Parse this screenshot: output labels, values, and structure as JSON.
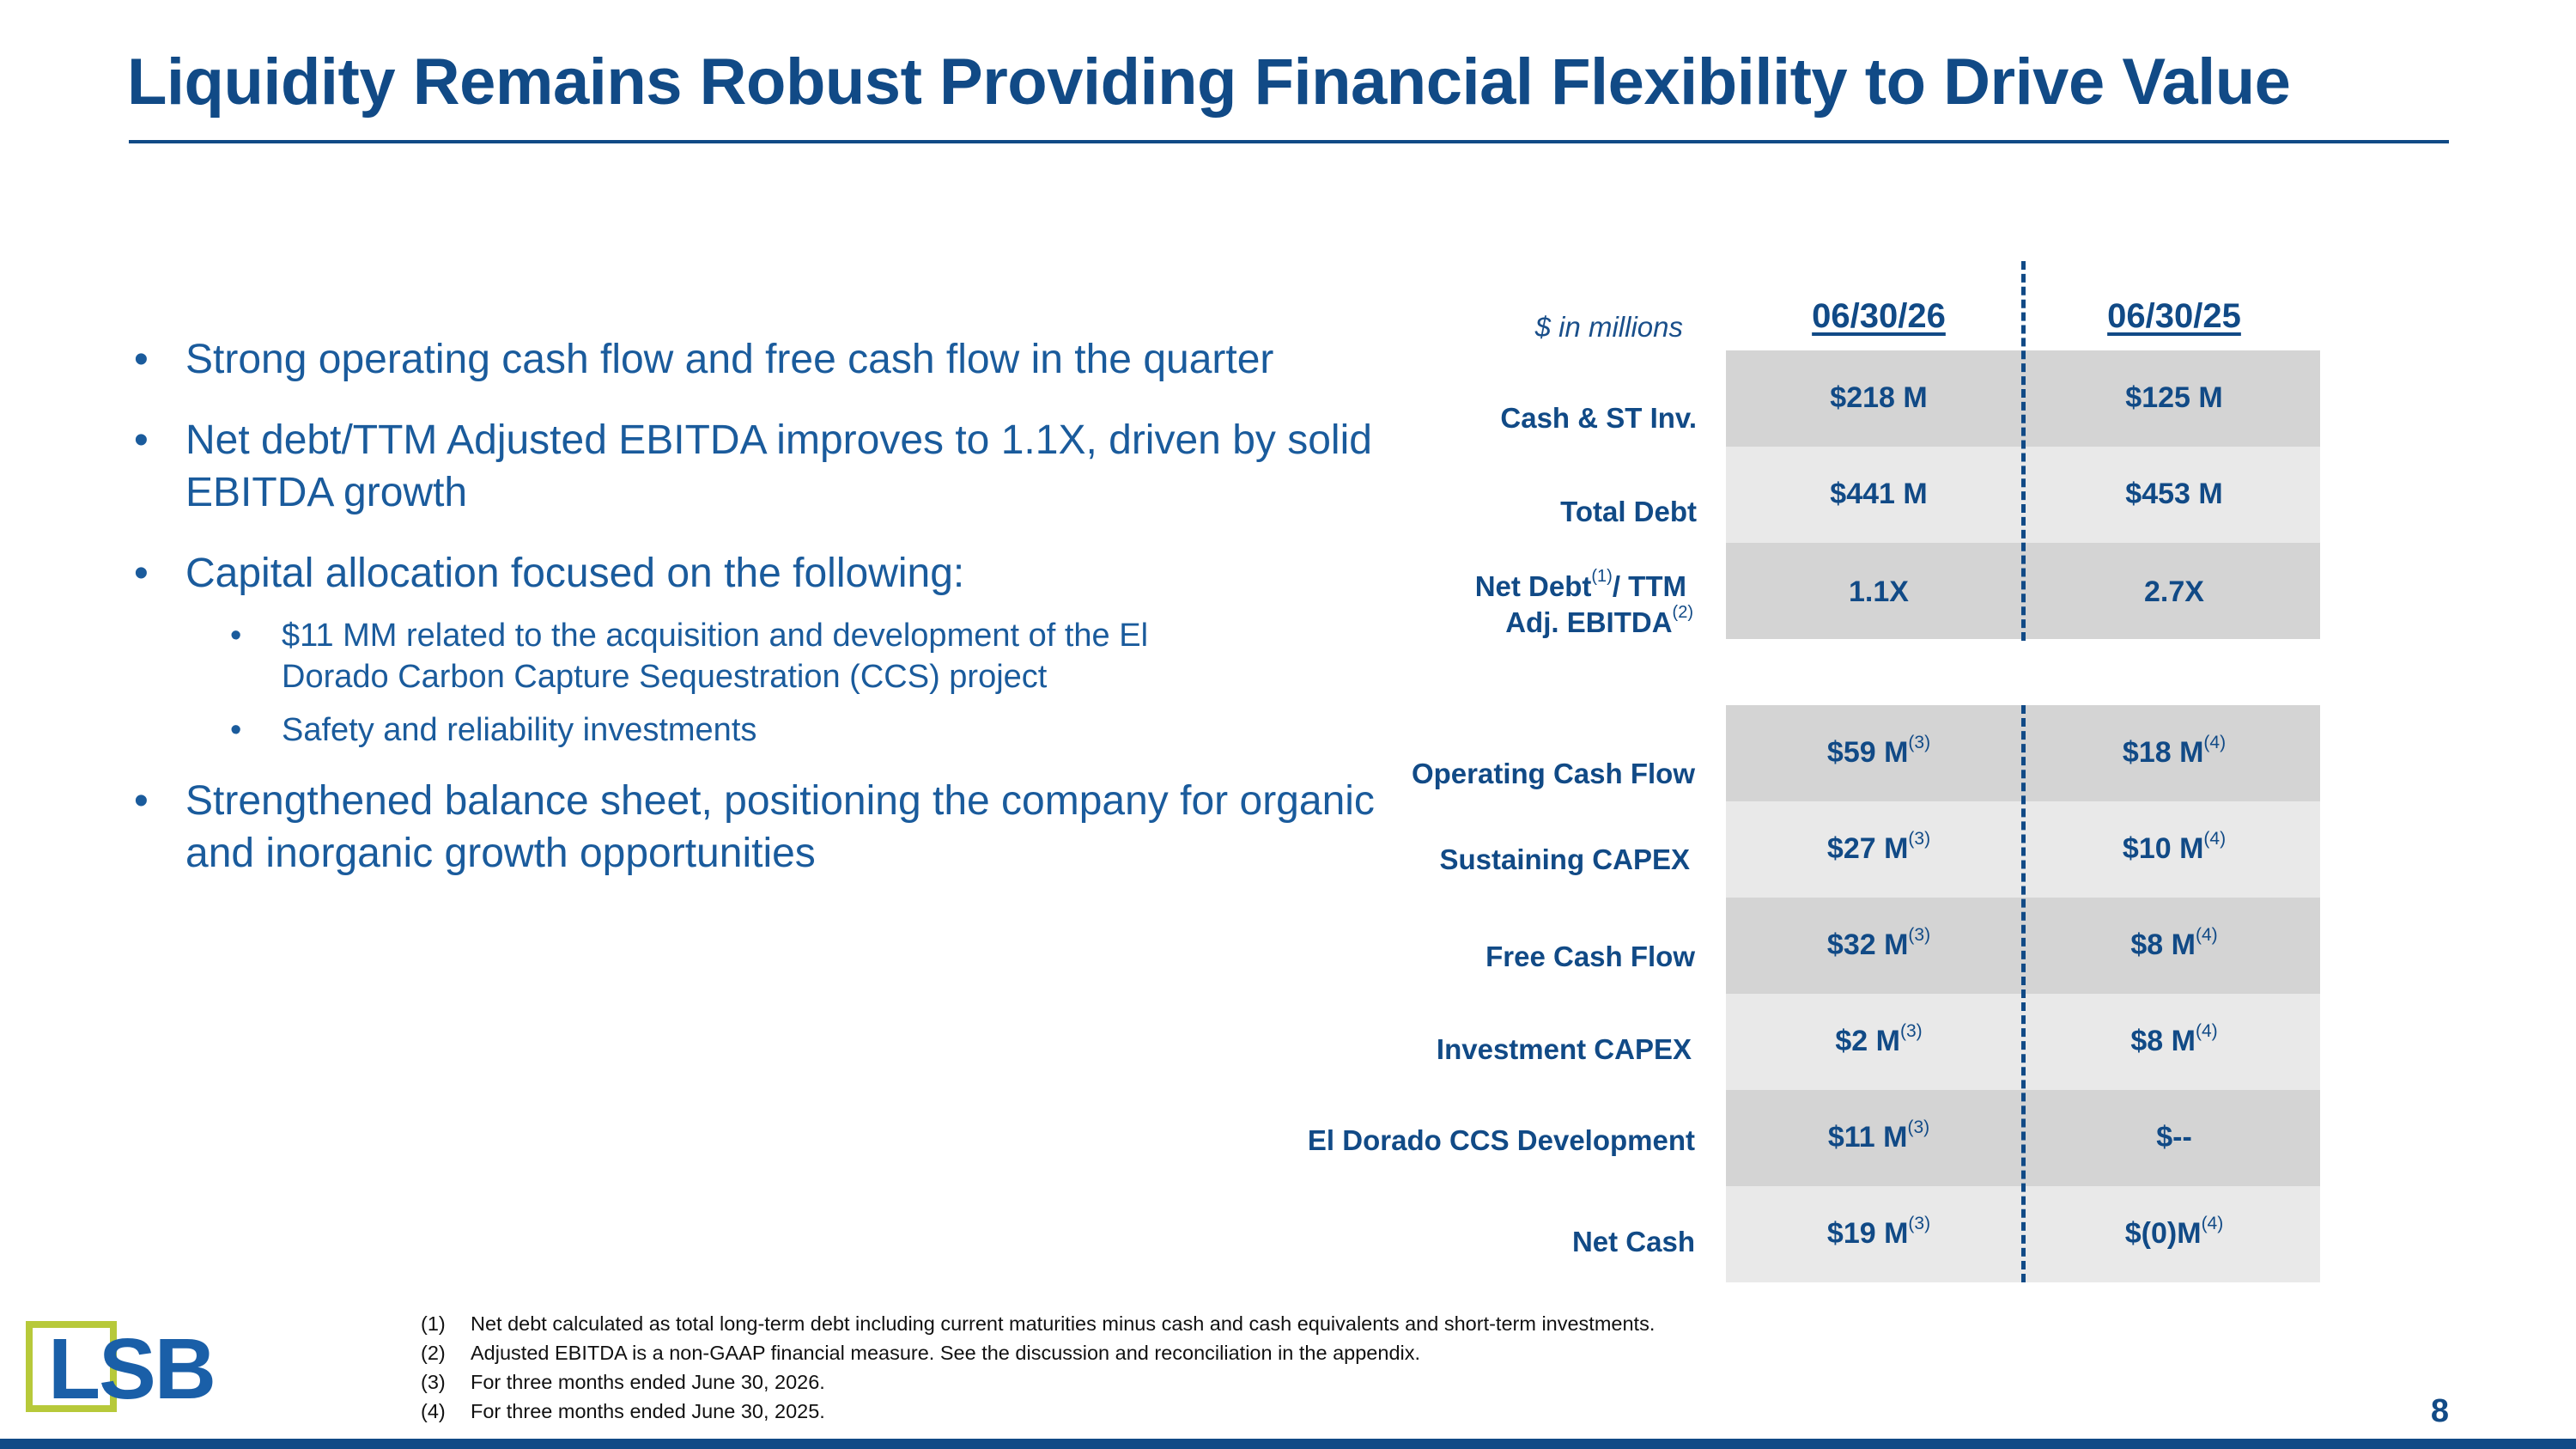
{
  "title": "Liquidity Remains Robust Providing Financial Flexibility to Drive Value",
  "bullets": {
    "b1": "Strong operating cash flow and free cash flow in the quarter",
    "b2": "Net debt/TTM Adjusted EBITDA improves to 1.1X, driven by solid EBITDA growth",
    "b3": "Capital allocation focused on the following:",
    "b3_sub1": "$11 MM related to the acquisition and development of the El Dorado Carbon Capture Sequestration (CCS) project",
    "b3_sub2": "Safety and reliability investments",
    "b4": "Strengthened balance sheet, positioning the company for organic and inorganic growth opportunities"
  },
  "table": {
    "units": "$ in millions",
    "col1": "06/30/26",
    "col2": "06/30/25",
    "rows": [
      {
        "label": "Cash & ST Inv.",
        "v1": "$218 M",
        "v1_note": "",
        "v2": "$125 M",
        "v2_note": ""
      },
      {
        "label": "Total Debt",
        "v1": "$441 M",
        "v1_note": "",
        "v2": "$453 M",
        "v2_note": ""
      },
      {
        "label_a": "Net Debt",
        "label_a_note": "(1)",
        "label_b": "/ TTM",
        "label_c": "Adj. EBITDA",
        "label_c_note": "(2)",
        "v1": "1.1X",
        "v1_note": "",
        "v2": "2.7X",
        "v2_note": ""
      },
      {
        "label": "Operating Cash Flow",
        "v1": "$59 M",
        "v1_note": "(3)",
        "v2": "$18 M",
        "v2_note": "(4)"
      },
      {
        "label": "Sustaining CAPEX",
        "v1": "$27 M",
        "v1_note": "(3)",
        "v2": "$10 M",
        "v2_note": "(4)"
      },
      {
        "label": "Free Cash Flow",
        "v1": "$32 M",
        "v1_note": "(3)",
        "v2": "$8 M",
        "v2_note": "(4)"
      },
      {
        "label": "Investment CAPEX",
        "v1": "$2 M",
        "v1_note": "(3)",
        "v2": "$8 M",
        "v2_note": "(4)"
      },
      {
        "label": "El Dorado CCS Development",
        "v1": "$11 M",
        "v1_note": "(3)",
        "v2": "$--",
        "v2_note": ""
      },
      {
        "label": "Net Cash",
        "v1": "$19 M",
        "v1_note": "(3)",
        "v2": "$(0)M",
        "v2_note": "(4)"
      }
    ]
  },
  "footnotes": [
    {
      "num": "(1)",
      "text": "Net debt calculated as total long-term debt including current maturities minus cash and cash equivalents and short-term investments."
    },
    {
      "num": "(2)",
      "text": "Adjusted EBITDA is a non-GAAP financial measure.  See the discussion and reconciliation in the appendix."
    },
    {
      "num": "(3)",
      "text": "For three months ended June 30, 2026."
    },
    {
      "num": "(4)",
      "text": "For three months ended June 30, 2025."
    }
  ],
  "logo": "LSB",
  "page_number": "8",
  "colors": {
    "primary": "#114a86",
    "text": "#1a5b9c",
    "row_dark": "#d4d4d4",
    "row_light": "#e9e9e9",
    "logo_green": "#b7c93a"
  }
}
